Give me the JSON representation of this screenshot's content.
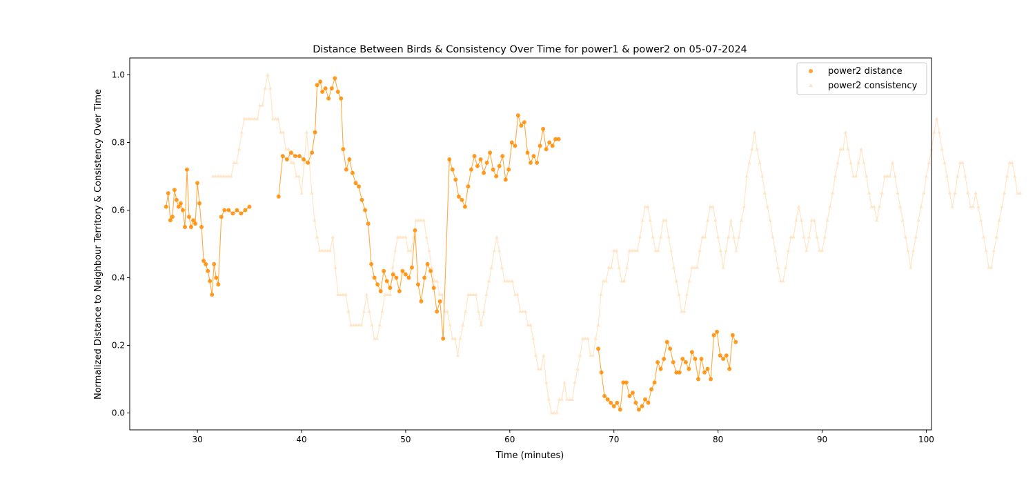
{
  "chart_data": {
    "type": "scatter",
    "title": "Distance Between Birds & Consistency Over Time for power1 & power2 on 05-07-2024",
    "xlabel": "Time (minutes)",
    "ylabel": "Normalized Distance to Neighbour Territory & Consistency Over Time",
    "xlim": [
      23.5,
      100.5
    ],
    "ylim": [
      -0.05,
      1.05
    ],
    "xticks": [
      30,
      40,
      50,
      60,
      70,
      80,
      90,
      100
    ],
    "xtick_labels": [
      "30",
      "40",
      "50",
      "60",
      "70",
      "80",
      "90",
      "100"
    ],
    "yticks": [
      0.0,
      0.2,
      0.4,
      0.6,
      0.8,
      1.0
    ],
    "ytick_labels": [
      "0.0",
      "0.2",
      "0.4",
      "0.6",
      "0.8",
      "1.0"
    ],
    "grid": false,
    "legend_position": "top-right",
    "colors": {
      "distance": "#ff8c00",
      "consistency": "#ffe4c4"
    },
    "series": [
      {
        "name": "power2 distance",
        "marker": "circle",
        "color": "#ff8c00",
        "points": [
          [
            27.0,
            0.61
          ],
          [
            27.2,
            0.65
          ],
          [
            27.4,
            0.57
          ],
          [
            27.6,
            0.58
          ],
          [
            27.8,
            0.66
          ],
          [
            28.0,
            0.63
          ],
          [
            28.2,
            0.61
          ],
          [
            28.4,
            0.62
          ],
          [
            28.6,
            0.6
          ],
          [
            28.8,
            0.55
          ],
          [
            29.0,
            0.72
          ],
          [
            29.2,
            0.58
          ],
          [
            29.4,
            0.55
          ],
          [
            29.6,
            0.57
          ],
          [
            29.8,
            0.56
          ],
          [
            30.0,
            0.68
          ],
          [
            30.2,
            0.62
          ],
          [
            30.4,
            0.55
          ],
          [
            30.6,
            0.45
          ],
          [
            30.8,
            0.44
          ],
          [
            31.0,
            0.42
          ],
          [
            31.2,
            0.39
          ],
          [
            31.4,
            0.35
          ],
          [
            31.6,
            0.44
          ],
          [
            31.8,
            0.4
          ],
          [
            32.0,
            0.38
          ],
          [
            32.3,
            0.58
          ],
          [
            32.6,
            0.6
          ],
          [
            33.0,
            0.6
          ],
          [
            33.4,
            0.59
          ],
          [
            33.8,
            0.6
          ],
          [
            34.2,
            0.59
          ],
          [
            34.6,
            0.6
          ],
          [
            35.0,
            0.61
          ],
          [
            37.8,
            0.64
          ],
          [
            38.2,
            0.76
          ],
          [
            38.6,
            0.75
          ],
          [
            39.0,
            0.77
          ],
          [
            39.4,
            0.76
          ],
          [
            39.8,
            0.76
          ],
          [
            40.2,
            0.75
          ],
          [
            40.6,
            0.74
          ],
          [
            41.0,
            0.77
          ],
          [
            41.3,
            0.83
          ],
          [
            41.5,
            0.97
          ],
          [
            41.8,
            0.98
          ],
          [
            42.0,
            0.95
          ],
          [
            42.3,
            0.96
          ],
          [
            42.6,
            0.93
          ],
          [
            42.9,
            0.96
          ],
          [
            43.2,
            0.99
          ],
          [
            43.5,
            0.95
          ],
          [
            43.8,
            0.93
          ],
          [
            44.0,
            0.78
          ],
          [
            44.3,
            0.72
          ],
          [
            44.6,
            0.75
          ],
          [
            44.9,
            0.71
          ],
          [
            45.2,
            0.68
          ],
          [
            45.5,
            0.67
          ],
          [
            45.8,
            0.63
          ],
          [
            46.1,
            0.6
          ],
          [
            46.4,
            0.56
          ],
          [
            46.7,
            0.44
          ],
          [
            47.0,
            0.4
          ],
          [
            47.3,
            0.38
          ],
          [
            47.6,
            0.36
          ],
          [
            47.9,
            0.42
          ],
          [
            48.2,
            0.39
          ],
          [
            48.5,
            0.37
          ],
          [
            48.8,
            0.41
          ],
          [
            49.1,
            0.4
          ],
          [
            49.4,
            0.36
          ],
          [
            49.7,
            0.42
          ],
          [
            50.0,
            0.41
          ],
          [
            50.3,
            0.4
          ],
          [
            50.6,
            0.43
          ],
          [
            50.9,
            0.54
          ],
          [
            51.2,
            0.38
          ],
          [
            51.5,
            0.33
          ],
          [
            51.8,
            0.4
          ],
          [
            52.1,
            0.44
          ],
          [
            52.4,
            0.42
          ],
          [
            52.7,
            0.37
          ],
          [
            53.0,
            0.3
          ],
          [
            53.3,
            0.33
          ],
          [
            53.6,
            0.22
          ],
          [
            54.2,
            0.75
          ],
          [
            54.5,
            0.72
          ],
          [
            54.8,
            0.69
          ],
          [
            55.1,
            0.64
          ],
          [
            55.4,
            0.63
          ],
          [
            55.7,
            0.61
          ],
          [
            56.0,
            0.67
          ],
          [
            56.3,
            0.72
          ],
          [
            56.6,
            0.76
          ],
          [
            56.9,
            0.73
          ],
          [
            57.2,
            0.75
          ],
          [
            57.5,
            0.71
          ],
          [
            57.8,
            0.74
          ],
          [
            58.1,
            0.77
          ],
          [
            58.4,
            0.72
          ],
          [
            58.7,
            0.7
          ],
          [
            59.0,
            0.73
          ],
          [
            59.3,
            0.76
          ],
          [
            59.6,
            0.69
          ],
          [
            59.9,
            0.72
          ],
          [
            60.2,
            0.8
          ],
          [
            60.5,
            0.79
          ],
          [
            60.8,
            0.88
          ],
          [
            61.1,
            0.85
          ],
          [
            61.4,
            0.86
          ],
          [
            61.7,
            0.77
          ],
          [
            62.0,
            0.74
          ],
          [
            62.3,
            0.76
          ],
          [
            62.6,
            0.74
          ],
          [
            62.9,
            0.79
          ],
          [
            63.2,
            0.84
          ],
          [
            63.5,
            0.78
          ],
          [
            63.8,
            0.8
          ],
          [
            64.1,
            0.79
          ],
          [
            64.4,
            0.81
          ],
          [
            64.7,
            0.81
          ],
          [
            68.5,
            0.19
          ],
          [
            68.8,
            0.12
          ],
          [
            69.1,
            0.05
          ],
          [
            69.4,
            0.04
          ],
          [
            69.7,
            0.03
          ],
          [
            70.0,
            0.02
          ],
          [
            70.3,
            0.03
          ],
          [
            70.6,
            0.01
          ],
          [
            70.9,
            0.09
          ],
          [
            71.2,
            0.09
          ],
          [
            71.5,
            0.05
          ],
          [
            71.8,
            0.06
          ],
          [
            72.1,
            0.03
          ],
          [
            72.4,
            0.01
          ],
          [
            72.7,
            0.02
          ],
          [
            73.0,
            0.04
          ],
          [
            73.3,
            0.03
          ],
          [
            73.6,
            0.07
          ],
          [
            73.9,
            0.09
          ],
          [
            74.2,
            0.15
          ],
          [
            74.5,
            0.13
          ],
          [
            74.8,
            0.16
          ],
          [
            75.1,
            0.21
          ],
          [
            75.4,
            0.19
          ],
          [
            75.7,
            0.15
          ],
          [
            76.0,
            0.12
          ],
          [
            76.3,
            0.12
          ],
          [
            76.6,
            0.16
          ],
          [
            76.9,
            0.15
          ],
          [
            77.2,
            0.13
          ],
          [
            77.5,
            0.18
          ],
          [
            77.8,
            0.16
          ],
          [
            78.1,
            0.1
          ],
          [
            78.4,
            0.16
          ],
          [
            78.7,
            0.12
          ],
          [
            79.0,
            0.13
          ],
          [
            79.3,
            0.1
          ],
          [
            79.6,
            0.23
          ],
          [
            79.9,
            0.24
          ],
          [
            80.2,
            0.17
          ],
          [
            80.5,
            0.16
          ],
          [
            80.8,
            0.17
          ],
          [
            81.1,
            0.13
          ],
          [
            81.4,
            0.23
          ],
          [
            81.7,
            0.21
          ]
        ]
      },
      {
        "name": "power2 consistency",
        "marker": "triangle",
        "color": "#ffe4c4",
        "x_start": 31.5,
        "x_step": 0.25,
        "values": [
          0.7,
          0.7,
          0.7,
          0.7,
          0.7,
          0.7,
          0.7,
          0.7,
          0.74,
          0.74,
          0.78,
          0.83,
          0.87,
          0.87,
          0.87,
          0.87,
          0.87,
          0.87,
          0.91,
          0.91,
          0.96,
          1.0,
          0.96,
          0.87,
          0.87,
          0.87,
          0.83,
          0.83,
          0.78,
          0.78,
          0.74,
          0.74,
          0.7,
          0.7,
          0.65,
          0.74,
          0.83,
          0.74,
          0.65,
          0.57,
          0.52,
          0.48,
          0.48,
          0.48,
          0.48,
          0.48,
          0.52,
          0.43,
          0.35,
          0.35,
          0.35,
          0.35,
          0.3,
          0.26,
          0.26,
          0.26,
          0.26,
          0.26,
          0.3,
          0.35,
          0.3,
          0.26,
          0.22,
          0.22,
          0.26,
          0.3,
          0.35,
          0.35,
          0.35,
          0.43,
          0.48,
          0.52,
          0.52,
          0.52,
          0.52,
          0.48,
          0.48,
          0.52,
          0.57,
          0.57,
          0.57,
          0.57,
          0.52,
          0.48,
          0.43,
          0.39,
          0.39,
          0.35,
          0.35,
          0.3,
          0.3,
          0.26,
          0.22,
          0.22,
          0.17,
          0.22,
          0.26,
          0.3,
          0.35,
          0.35,
          0.35,
          0.35,
          0.3,
          0.26,
          0.3,
          0.35,
          0.39,
          0.43,
          0.48,
          0.52,
          0.48,
          0.43,
          0.39,
          0.39,
          0.39,
          0.39,
          0.35,
          0.35,
          0.3,
          0.3,
          0.3,
          0.26,
          0.26,
          0.22,
          0.17,
          0.13,
          0.13,
          0.17,
          0.09,
          0.04,
          0.0,
          0.0,
          0.0,
          0.04,
          0.04,
          0.09,
          0.04,
          0.04,
          0.04,
          0.09,
          0.13,
          0.17,
          0.22,
          0.22,
          0.22,
          0.17,
          0.17,
          0.22,
          0.26,
          0.35,
          0.39,
          0.39,
          0.43,
          0.43,
          0.48,
          0.48,
          0.43,
          0.39,
          0.39,
          0.43,
          0.48,
          0.48,
          0.48,
          0.48,
          0.52,
          0.57,
          0.61,
          0.61,
          0.57,
          0.52,
          0.48,
          0.48,
          0.52,
          0.57,
          0.57,
          0.52,
          0.48,
          0.43,
          0.39,
          0.35,
          0.3,
          0.3,
          0.35,
          0.39,
          0.43,
          0.43,
          0.43,
          0.48,
          0.52,
          0.52,
          0.57,
          0.61,
          0.61,
          0.57,
          0.52,
          0.48,
          0.43,
          0.48,
          0.52,
          0.57,
          0.52,
          0.48,
          0.52,
          0.57,
          0.61,
          0.7,
          0.74,
          0.78,
          0.83,
          0.78,
          0.74,
          0.7,
          0.65,
          0.61,
          0.57,
          0.52,
          0.48,
          0.43,
          0.39,
          0.39,
          0.43,
          0.48,
          0.52,
          0.52,
          0.57,
          0.61,
          0.57,
          0.52,
          0.48,
          0.52,
          0.57,
          0.57,
          0.52,
          0.48,
          0.48,
          0.52,
          0.57,
          0.61,
          0.65,
          0.7,
          0.74,
          0.78,
          0.78,
          0.83,
          0.78,
          0.74,
          0.7,
          0.7,
          0.74,
          0.78,
          0.74,
          0.7,
          0.65,
          0.61,
          0.61,
          0.57,
          0.61,
          0.65,
          0.7,
          0.7,
          0.7,
          0.74,
          0.7,
          0.65,
          0.61,
          0.57,
          0.52,
          0.48,
          0.43,
          0.48,
          0.52,
          0.57,
          0.61,
          0.65,
          0.7,
          0.74,
          0.78,
          0.83,
          0.87,
          0.83,
          0.78,
          0.74,
          0.7,
          0.65,
          0.61,
          0.65,
          0.7,
          0.74,
          0.74,
          0.7,
          0.65,
          0.61,
          0.61,
          0.65,
          0.61,
          0.57,
          0.52,
          0.48,
          0.43,
          0.43,
          0.48,
          0.52,
          0.57,
          0.61,
          0.65,
          0.7,
          0.74,
          0.74,
          0.7,
          0.65,
          0.65
        ]
      }
    ]
  },
  "legend": {
    "items": [
      {
        "label": "power2 distance"
      },
      {
        "label": "power2 consistency"
      }
    ]
  }
}
